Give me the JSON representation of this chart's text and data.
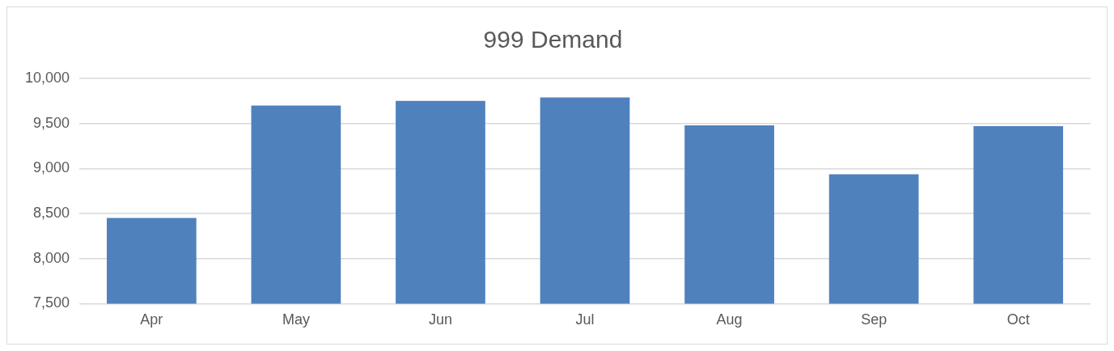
{
  "chart_data": {
    "type": "bar",
    "title": "999 Demand",
    "categories": [
      "Apr",
      "May",
      "Jun",
      "Jul",
      "Aug",
      "Sep",
      "Oct"
    ],
    "values": [
      8450,
      9700,
      9750,
      9790,
      9480,
      8935,
      9470
    ],
    "color": "#4f81bd",
    "ylim": [
      7500,
      10000
    ],
    "yticks": [
      {
        "value": 7500,
        "label": "7,500"
      },
      {
        "value": 8000,
        "label": "8,000"
      },
      {
        "value": 8500,
        "label": "8,500"
      },
      {
        "value": 9000,
        "label": "9,000"
      },
      {
        "value": 9500,
        "label": "9,500"
      },
      {
        "value": 10000,
        "label": "10,000"
      }
    ],
    "grid": "y",
    "legend": false
  }
}
